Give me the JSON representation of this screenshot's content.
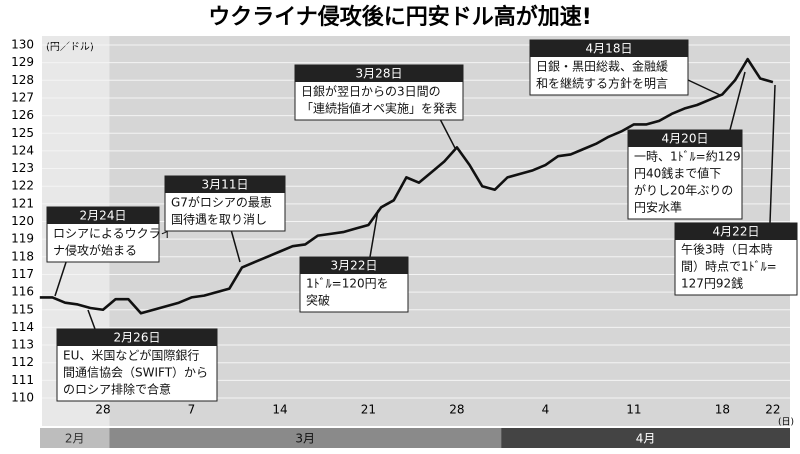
{
  "chart_data": {
    "type": "line",
    "title": "ウクライナ侵攻後に円安ドル高が加速!",
    "y_label": "(円／ドル)",
    "x_unit": "(日)",
    "categories": [
      null,
      null,
      null,
      null,
      null,
      "28",
      null,
      null,
      null,
      null,
      null,
      null,
      "7",
      null,
      null,
      null,
      null,
      null,
      null,
      "14",
      null,
      null,
      null,
      null,
      null,
      null,
      "21",
      null,
      null,
      null,
      null,
      null,
      null,
      "28",
      null,
      null,
      null,
      null,
      null,
      null,
      "4",
      null,
      null,
      null,
      null,
      null,
      null,
      "11",
      null,
      null,
      null,
      null,
      null,
      null,
      "18",
      null,
      null,
      null,
      "22"
    ],
    "series": [
      {
        "color": "#111111",
        "values": [
          115.7,
          115.7,
          115.4,
          115.3,
          115.1,
          115.0,
          115.6,
          115.6,
          114.8,
          115.0,
          115.2,
          115.4,
          115.7,
          115.8,
          116.0,
          116.2,
          117.4,
          117.7,
          118.0,
          118.3,
          118.6,
          118.7,
          119.2,
          119.3,
          119.4,
          119.6,
          119.8,
          120.8,
          121.2,
          122.5,
          122.2,
          122.8,
          123.4,
          124.2,
          123.2,
          122.0,
          121.8,
          122.5,
          122.7,
          122.9,
          123.2,
          123.7,
          123.8,
          124.1,
          124.4,
          124.8,
          125.1,
          125.5,
          125.5,
          125.7,
          126.1,
          126.4,
          126.6,
          126.9,
          127.2,
          128.0,
          129.2,
          128.1,
          127.9
        ]
      }
    ],
    "ylim": [
      110,
      130
    ],
    "yticks": [
      110,
      111,
      112,
      113,
      114,
      115,
      116,
      117,
      118,
      119,
      120,
      121,
      122,
      123,
      124,
      125,
      126,
      127,
      128,
      129,
      130
    ],
    "grid": true,
    "months": [
      "2月",
      "3月",
      "4月"
    ],
    "annotations": [
      {
        "title": "2月24日",
        "lines": [
          "ロシアによるウクライ",
          "ナ侵攻が始まる"
        ]
      },
      {
        "title": "2月26日",
        "lines": [
          "EU、米国などが国際銀行",
          "間通信協会（SWIFT）から",
          "のロシア排除で合意"
        ]
      },
      {
        "title": "3月11日",
        "lines": [
          "G7がロシアの最恵",
          "国待遇を取り消し"
        ]
      },
      {
        "title": "3月22日",
        "lines": [
          "1ﾄﾞﾙ=120円を",
          "突破"
        ]
      },
      {
        "title": "3月28日",
        "lines": [
          "日銀が翌日からの3日間の",
          "「連続指値オペ実施」を発表"
        ]
      },
      {
        "title": "4月18日",
        "lines": [
          "日銀・黒田総裁、金融緩",
          "和を継続する方針を明言"
        ]
      },
      {
        "title": "4月20日",
        "lines": [
          "一時、1ﾄﾞﾙ=約129",
          "円40銭まで値下",
          "がりし20年ぶりの",
          "円安水準"
        ]
      },
      {
        "title": "4月22日",
        "lines": [
          "午後3時（日本時",
          "間）時点で1ﾄﾞﾙ=",
          "127円92銭"
        ]
      }
    ]
  }
}
